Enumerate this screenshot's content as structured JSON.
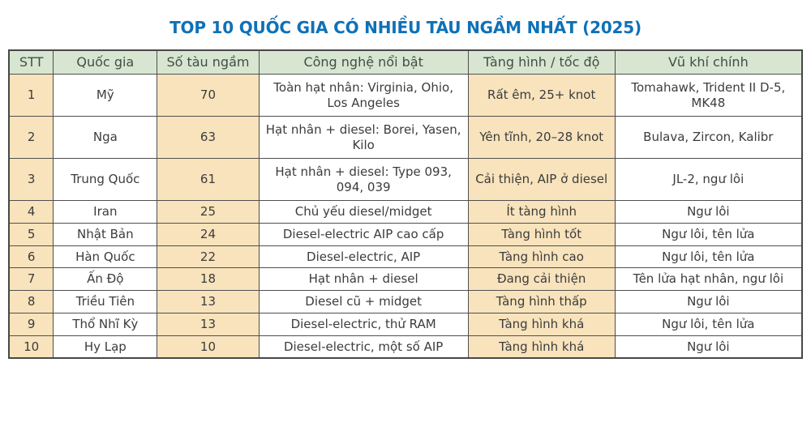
{
  "page": {
    "title": "TOP 10 QUỐC GIA CÓ NHIỀU TÀU NGẦM NHẤT (2025)"
  },
  "colors": {
    "title_text": "#0e71b8",
    "header_bg": "#d8e6d1",
    "header_text": "#3f4f45",
    "accent_cell_bg": "#f8e3bc",
    "body_text": "#3c3c3c",
    "border": "#4f4f4f",
    "page_bg": "#ffffff"
  },
  "chart_data": {
    "type": "table",
    "title": "TOP 10 QUỐC GIA CÓ NHIỀU TÀU NGẦM NHẤT (2025)",
    "columns": [
      "STT",
      "Quốc gia",
      "Số tàu ngầm",
      "Công nghệ nổi bật",
      "Tàng hình / tốc độ",
      "Vũ khí chính"
    ],
    "rows": [
      [
        "1",
        "Mỹ",
        "70",
        "Toàn hạt nhân: Virginia, Ohio, Los Angeles",
        "Rất êm, 25+ knot",
        "Tomahawk, Trident II D-5, MK48"
      ],
      [
        "2",
        "Nga",
        "63",
        "Hạt nhân + diesel: Borei, Yasen, Kilo",
        "Yên tĩnh, 20–28 knot",
        "Bulava, Zircon, Kalibr"
      ],
      [
        "3",
        "Trung Quốc",
        "61",
        "Hạt nhân + diesel: Type 093, 094, 039",
        "Cải thiện, AIP ở diesel",
        "JL-2, ngư lôi"
      ],
      [
        "4",
        "Iran",
        "25",
        "Chủ yếu diesel/midget",
        "Ít tàng hình",
        "Ngư lôi"
      ],
      [
        "5",
        "Nhật Bản",
        "24",
        "Diesel-electric AIP cao cấp",
        "Tàng hình tốt",
        "Ngư lôi, tên lửa"
      ],
      [
        "6",
        "Hàn Quốc",
        "22",
        "Diesel-electric, AIP",
        "Tàng hình cao",
        "Ngư lôi, tên lửa"
      ],
      [
        "7",
        "Ấn Độ",
        "18",
        "Hạt nhân + diesel",
        "Đang cải thiện",
        "Tên lửa hạt nhân, ngư lôi"
      ],
      [
        "8",
        "Triều Tiên",
        "13",
        "Diesel cũ + midget",
        "Tàng hình thấp",
        "Ngư lôi"
      ],
      [
        "9",
        "Thổ Nhĩ Kỳ",
        "13",
        "Diesel-electric, thử RAM",
        "Tàng hình khá",
        "Ngư lôi, tên lửa"
      ],
      [
        "10",
        "Hy Lạp",
        "10",
        "Diesel-electric, một số AIP",
        "Tàng hình khá",
        "Ngư lôi"
      ]
    ]
  }
}
